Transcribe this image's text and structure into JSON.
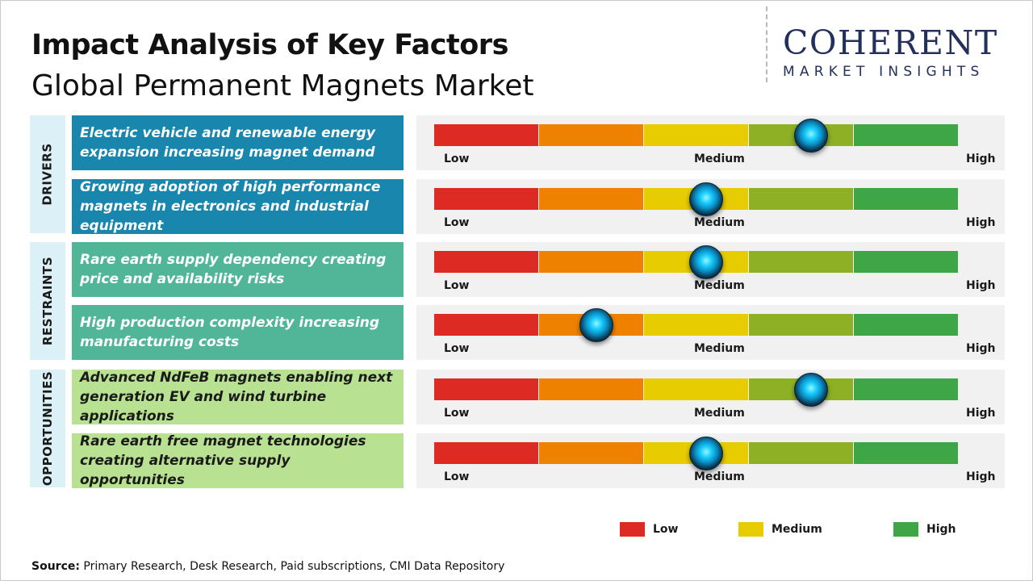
{
  "title": "Impact Analysis of Key Factors",
  "subtitle": "Global Permanent Magnets Market",
  "logo": {
    "brand": "COHERENT",
    "tagline": "MARKET INSIGHTS"
  },
  "chart_data": {
    "type": "table",
    "scale_segment_colors": [
      "#dd2a22",
      "#ee8100",
      "#e6cc00",
      "#8db025",
      "#3fa647"
    ],
    "scale_labels": {
      "low": "Low",
      "medium": "Medium",
      "high": "High"
    },
    "categories": [
      {
        "name": "DRIVERS",
        "color": "#dcf0f7"
      },
      {
        "name": "RESTRAINTS",
        "color": "#dcf0f7"
      },
      {
        "name": "OPPORTUNITIES",
        "color": "#dcf0f7"
      }
    ],
    "factors": [
      {
        "category": "DRIVERS",
        "text": "Electric vehicle and renewable energy expansion increasing magnet demand",
        "impact": 0.72,
        "color": "#1986ae"
      },
      {
        "category": "DRIVERS",
        "text": "Growing adoption of high performance magnets in electronics and industrial equipment",
        "impact": 0.52,
        "color": "#1986ae"
      },
      {
        "category": "RESTRAINTS",
        "text": "Rare earth supply dependency creating price and availability risks",
        "impact": 0.52,
        "color": "#51b697"
      },
      {
        "category": "RESTRAINTS",
        "text": "High production complexity increasing manufacturing costs",
        "impact": 0.31,
        "color": "#51b697"
      },
      {
        "category": "OPPORTUNITIES",
        "text": "Advanced NdFeB magnets enabling next generation EV and wind turbine applications",
        "impact": 0.72,
        "color": "#b8e191"
      },
      {
        "category": "OPPORTUNITIES",
        "text": "Rare earth free magnet technologies creating alternative supply opportunities",
        "impact": 0.52,
        "color": "#b8e191"
      }
    ],
    "legend": [
      {
        "label": "Low",
        "color": "#dd2a22"
      },
      {
        "label": "Medium",
        "color": "#e6cc00"
      },
      {
        "label": "High",
        "color": "#3fa647"
      }
    ]
  },
  "source": {
    "label": "Source:",
    "text": " Primary Research, Desk Research, Paid subscriptions, CMI Data Repository"
  }
}
